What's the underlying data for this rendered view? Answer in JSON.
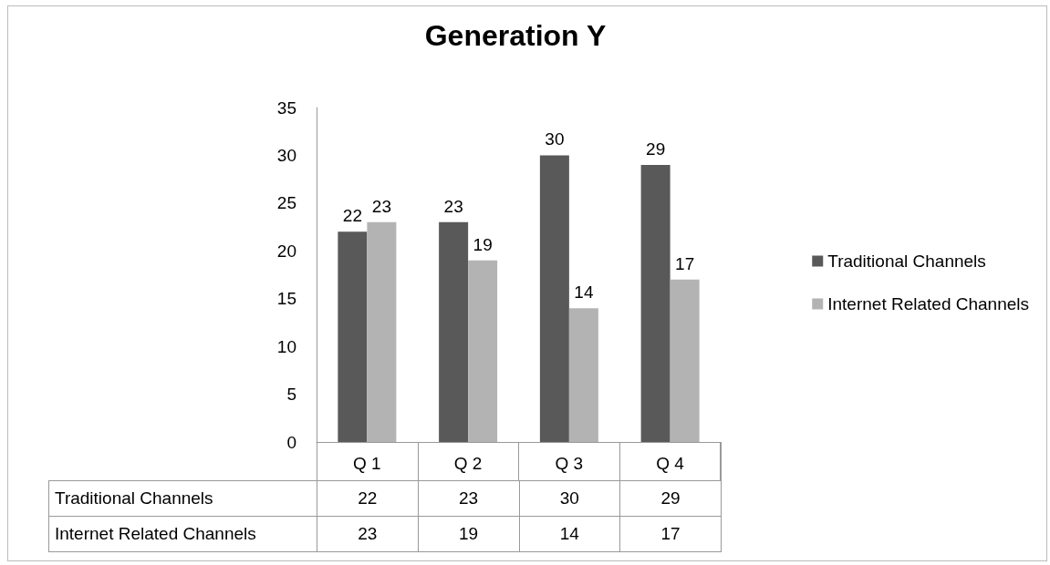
{
  "chart_data": {
    "type": "bar",
    "title": "Generation Y",
    "categories": [
      "Q 1",
      "Q 2",
      "Q 3",
      "Q 4"
    ],
    "series": [
      {
        "name": "Traditional Channels",
        "color": "#595959",
        "values": [
          22,
          23,
          30,
          29
        ],
        "value_labels": [
          "22",
          "23",
          "30",
          "29"
        ]
      },
      {
        "name": "Internet Related Channels",
        "color": "#b3b3b3",
        "values": [
          23,
          19,
          14,
          17
        ],
        "value_labels": [
          "23",
          "19",
          "14",
          "17"
        ]
      }
    ],
    "annotations": [
      "22",
      "23",
      "30",
      "29",
      "23",
      "19",
      "14",
      "17"
    ],
    "ylim": [
      0,
      35
    ],
    "yticks": [
      0,
      5,
      10,
      15,
      20,
      25,
      30,
      35
    ],
    "grid": false,
    "legend": "right",
    "data_labels": true
  }
}
